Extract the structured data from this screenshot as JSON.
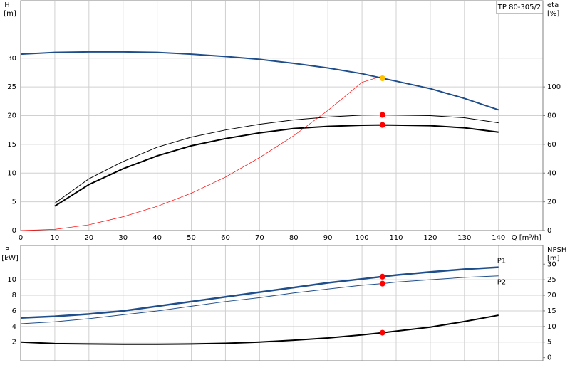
{
  "chart_data": [
    {
      "type": "line",
      "title": "TP 80-305/2",
      "ylabel": [
        "H",
        "[m]"
      ],
      "y2label": [
        "eta",
        "[%]"
      ],
      "xlabel": "Q [m³/h]",
      "xlim": [
        0,
        153
      ],
      "xticks": [
        0,
        10,
        20,
        30,
        40,
        50,
        60,
        70,
        80,
        90,
        100,
        110,
        120,
        130,
        140
      ],
      "ylim": [
        0,
        40
      ],
      "yticks": [
        0,
        5,
        10,
        15,
        20,
        25,
        30
      ],
      "y2lim": [
        0,
        160
      ],
      "y2ticks": [
        0,
        20,
        40,
        60,
        80,
        100
      ],
      "grid": true,
      "x": [
        0,
        10,
        20,
        30,
        40,
        50,
        60,
        70,
        80,
        90,
        100,
        106,
        110,
        120,
        130,
        140
      ],
      "series": [
        {
          "color": "#1f4e8c",
          "width": 2,
          "axis": "y",
          "values": [
            30.7,
            31.0,
            31.1,
            31.1,
            31.0,
            30.7,
            30.3,
            29.8,
            29.1,
            28.3,
            27.3,
            26.5,
            26.0,
            24.7,
            23.0,
            21.0
          ]
        },
        {
          "color": "#000000",
          "width": 1,
          "axis": "y2",
          "values": [
            null,
            19,
            36,
            48,
            58,
            65,
            70,
            74,
            77,
            79,
            80.4,
            80.5,
            80.4,
            80,
            78.5,
            75
          ]
        },
        {
          "color": "#000000",
          "width": 2,
          "axis": "y2",
          "values": [
            null,
            17,
            32,
            43,
            52,
            59,
            64,
            68,
            71,
            72.5,
            73.3,
            73.5,
            73.4,
            73,
            71.5,
            68.5
          ]
        },
        {
          "color": "#ff0000",
          "width": 0.7,
          "axis": "y",
          "values": [
            0,
            0.2,
            1,
            2.4,
            4.2,
            6.5,
            9.3,
            12.7,
            16.5,
            20.9,
            25.8,
            26.9,
            null,
            null,
            null,
            null
          ]
        }
      ],
      "points": [
        {
          "x": 106,
          "y": 26.5,
          "axis": "y",
          "color": "#ffc000"
        },
        {
          "x": 106,
          "y": 80.5,
          "axis": "y2",
          "color": "#ff0000"
        },
        {
          "x": 106,
          "y": 73.5,
          "axis": "y2",
          "color": "#ff0000"
        }
      ]
    },
    {
      "type": "line",
      "ylabel": [
        "P",
        "[kW]"
      ],
      "y2label": [
        "NPSH",
        "[m]"
      ],
      "xlim": [
        0,
        153
      ],
      "xticks": [
        0,
        10,
        20,
        30,
        40,
        50,
        60,
        70,
        80,
        90,
        100,
        110,
        120,
        130,
        140
      ],
      "ylim": [
        -0.4,
        14.4
      ],
      "yticks": [
        2,
        4,
        6,
        8,
        10
      ],
      "y2lim": [
        -1,
        36
      ],
      "y2ticks": [
        0,
        5,
        10,
        15,
        20,
        25,
        30
      ],
      "grid": true,
      "x": [
        0,
        10,
        20,
        30,
        40,
        50,
        60,
        70,
        80,
        90,
        100,
        106,
        110,
        120,
        130,
        140
      ],
      "series": [
        {
          "name": "P1",
          "color": "#1f4e8c",
          "width": 2.5,
          "axis": "y",
          "values": [
            5.1,
            5.3,
            5.6,
            6.0,
            6.6,
            7.2,
            7.8,
            8.4,
            9.0,
            9.6,
            10.1,
            10.4,
            10.6,
            11.0,
            11.35,
            11.6
          ]
        },
        {
          "name": "P2",
          "color": "#1f4e8c",
          "width": 1,
          "axis": "y",
          "values": [
            4.35,
            4.6,
            5.0,
            5.5,
            6.0,
            6.6,
            7.2,
            7.7,
            8.3,
            8.8,
            9.3,
            9.5,
            9.7,
            10.0,
            10.3,
            10.5
          ]
        },
        {
          "color": "#000000",
          "width": 2,
          "axis": "y2",
          "values": [
            5.0,
            4.5,
            4.4,
            4.3,
            4.3,
            4.4,
            4.6,
            5.0,
            5.6,
            6.3,
            7.3,
            8.0,
            8.5,
            9.8,
            11.6,
            13.6
          ]
        }
      ],
      "points": [
        {
          "x": 106,
          "y": 10.4,
          "axis": "y",
          "color": "#ff0000"
        },
        {
          "x": 106,
          "y": 9.5,
          "axis": "y",
          "color": "#ff0000"
        },
        {
          "x": 106,
          "y": 8.0,
          "axis": "y2",
          "color": "#ff0000"
        }
      ]
    }
  ]
}
